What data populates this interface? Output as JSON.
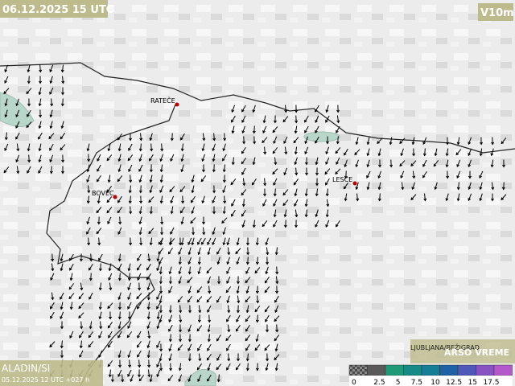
{
  "header": {
    "valid_time": "06.12.2025 15 UTC",
    "field": "V10m"
  },
  "places": [
    {
      "label": "RATEČE"
    },
    {
      "label": "BOVEC"
    },
    {
      "label": "LESCE"
    }
  ],
  "footer": {
    "model": "ALADIN/SI",
    "run": "05.12.2025 12 UTC +027 h",
    "station": "LJUBLJANA/BEŽIGRAD",
    "brand": "ARSO VREME"
  },
  "legend": {
    "colors": [
      "#9a9a9a",
      "#5a5a5a",
      "#1f9a78",
      "#168a84",
      "#137e96",
      "#1e62a6",
      "#4f58b8",
      "#8952c2",
      "#b458cc"
    ],
    "ticks": [
      0,
      2.5,
      5,
      7.5,
      10,
      12.5,
      15,
      17.5
    ]
  }
}
